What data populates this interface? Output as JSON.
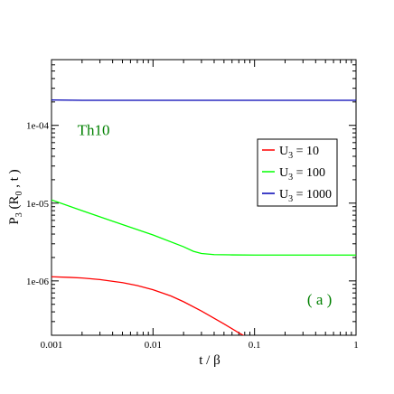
{
  "chart_data": {
    "type": "line",
    "title": "",
    "xlabel": "t / β",
    "ylabel": "P",
    "ylabel_sub": "3",
    "ylabel_args": " (R",
    "ylabel_args_sub": "0",
    "ylabel_args_end": " , t )",
    "x_scale": "log",
    "y_scale": "log",
    "xlim": [
      0.001,
      1
    ],
    "ylim": [
      2e-07,
      0.0007
    ],
    "x_ticks": [
      {
        "value": 0.001,
        "label": "0.001"
      },
      {
        "value": 0.01,
        "label": "0.01"
      },
      {
        "value": 0.1,
        "label": "0.1"
      },
      {
        "value": 1,
        "label": "1"
      }
    ],
    "y_ticks": [
      {
        "value": 1e-06,
        "label": "1e-06"
      },
      {
        "value": 1e-05,
        "label": "1e-05"
      },
      {
        "value": 0.0001,
        "label": "1e-04"
      }
    ],
    "grid": false,
    "annotations": [
      {
        "text": "Th10",
        "x": 0.0018,
        "y": 7.5e-05,
        "color": "#008000"
      },
      {
        "text": "( a )",
        "x": 0.33,
        "y": 5e-07,
        "color": "#008000"
      }
    ],
    "legend": {
      "placement": "right",
      "entries": [
        {
          "prefix": "U",
          "sub": "3",
          "suffix": " = 10",
          "color": "#ff0000"
        },
        {
          "prefix": "U",
          "sub": "3",
          "suffix": " = 100",
          "color": "#00ff00"
        },
        {
          "prefix": "U",
          "sub": "3",
          "suffix": " = 1000",
          "color": "#0000b4"
        }
      ]
    },
    "series": [
      {
        "color": "#ff0000",
        "x": [
          0.001,
          0.0015,
          0.002,
          0.003,
          0.005,
          0.007,
          0.01,
          0.015,
          0.02,
          0.03,
          0.05,
          0.07,
          0.086
        ],
        "y": [
          1.13e-06,
          1.11e-06,
          1.09e-06,
          1.04e-06,
          9.5e-07,
          8.7e-07,
          7.7e-07,
          6.4e-07,
          5.4e-07,
          4.1e-07,
          2.8e-07,
          2.15e-07,
          1.85e-07
        ]
      },
      {
        "color": "#00ff00",
        "x": [
          0.001,
          0.002,
          0.005,
          0.01,
          0.02,
          0.025,
          0.03,
          0.04,
          0.06,
          0.1,
          0.3,
          1
        ],
        "y": [
          1.1e-05,
          8e-06,
          5.3e-06,
          3.9e-06,
          2.75e-06,
          2.4e-06,
          2.25e-06,
          2.18e-06,
          2.16e-06,
          2.15e-06,
          2.15e-06,
          2.15e-06
        ]
      },
      {
        "color": "#0000b4",
        "x": [
          0.001,
          0.002,
          0.01,
          0.1,
          1
        ],
        "y": [
          0.000212,
          0.00021,
          0.00021,
          0.00021,
          0.00021
        ]
      }
    ]
  }
}
